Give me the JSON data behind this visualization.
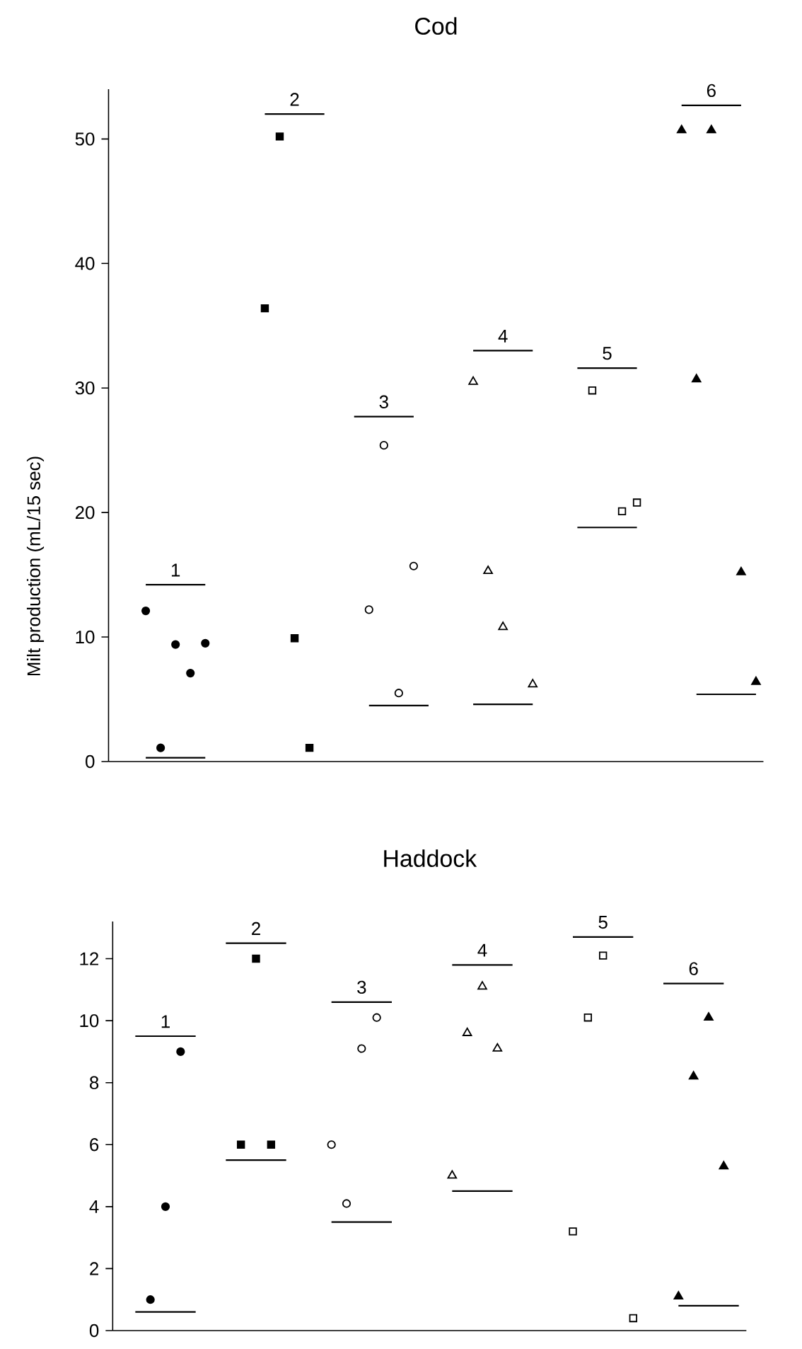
{
  "chart_data": [
    {
      "type": "scatter",
      "title": "Cod",
      "ylabel": "Milt production (mL/15 sec)",
      "ylim": [
        0,
        54
      ],
      "yticks": [
        0,
        10,
        20,
        30,
        40,
        50
      ],
      "tick_labels": "y",
      "categories": [
        null,
        null,
        null,
        null,
        null,
        null,
        null,
        null,
        null,
        null,
        null,
        null,
        null,
        null,
        null,
        null,
        null,
        null,
        null,
        null,
        null,
        null,
        null,
        null,
        null,
        null,
        null,
        null,
        null,
        null,
        null,
        null,
        null,
        null,
        null,
        null,
        null,
        null,
        null,
        null,
        null,
        null,
        null,
        null
      ],
      "series": [
        {
          "marker": "circle",
          "color": "#000000",
          "values": [
            null,
            null,
            12.1,
            1.1,
            9.4,
            7.1,
            9.5,
            null,
            null,
            null,
            null,
            null,
            null,
            null,
            null,
            null,
            null,
            null,
            null,
            null,
            null,
            null,
            null,
            null,
            null,
            null,
            null,
            null,
            null,
            null,
            null,
            null,
            null,
            null,
            null,
            null,
            null,
            null,
            null,
            null,
            null,
            null,
            null,
            null
          ]
        },
        {
          "type": "line",
          "name": "1",
          "color": "#000000",
          "values": [
            null,
            null,
            14.2,
            14.2,
            14.2,
            14.2,
            14.2,
            null,
            null,
            null,
            null,
            null,
            null,
            null,
            null,
            null,
            null,
            null,
            null,
            null,
            null,
            null,
            null,
            null,
            null,
            null,
            null,
            null,
            null,
            null,
            null,
            null,
            null,
            null,
            null,
            null,
            null,
            null,
            null,
            null,
            null,
            null,
            null,
            null
          ]
        },
        {
          "type": "line",
          "color": "#000000",
          "values": [
            null,
            null,
            0.3,
            0.3,
            0.3,
            0.3,
            0.3,
            null,
            null,
            null,
            null,
            null,
            null,
            null,
            null,
            null,
            null,
            null,
            null,
            null,
            null,
            null,
            null,
            null,
            null,
            null,
            null,
            null,
            null,
            null,
            null,
            null,
            null,
            null,
            null,
            null,
            null,
            null,
            null,
            null,
            null,
            null,
            null,
            null
          ]
        },
        {
          "marker": "square",
          "color": "#000000",
          "values": [
            null,
            null,
            null,
            null,
            null,
            null,
            null,
            null,
            null,
            null,
            36.4,
            50.2,
            9.9,
            1.1,
            null,
            null,
            null,
            null,
            null,
            null,
            null,
            null,
            null,
            null,
            null,
            null,
            null,
            null,
            null,
            null,
            null,
            null,
            null,
            null,
            null,
            null,
            null,
            null,
            null,
            null,
            null,
            null,
            null,
            null
          ]
        },
        {
          "type": "line",
          "name": "2",
          "color": "#000000",
          "values": [
            null,
            null,
            null,
            null,
            null,
            null,
            null,
            null,
            null,
            null,
            52.0,
            52.0,
            52.0,
            52.0,
            52.0,
            null,
            null,
            null,
            null,
            null,
            null,
            null,
            null,
            null,
            null,
            null,
            null,
            null,
            null,
            null,
            null,
            null,
            null,
            null,
            null,
            null,
            null,
            null,
            null,
            null,
            null,
            null,
            null,
            null
          ]
        },
        {
          "marker": "circle",
          "color": "#ffffff",
          "values": [
            null,
            null,
            null,
            null,
            null,
            null,
            null,
            null,
            null,
            null,
            null,
            null,
            null,
            null,
            null,
            null,
            null,
            12.2,
            25.4,
            5.5,
            15.7,
            null,
            null,
            null,
            null,
            null,
            null,
            null,
            null,
            null,
            null,
            null,
            null,
            null,
            null,
            null,
            null,
            null,
            null,
            null,
            null,
            null,
            null,
            null
          ]
        },
        {
          "type": "line",
          "name": "3",
          "color": "#000000",
          "values": [
            null,
            null,
            null,
            null,
            null,
            null,
            null,
            null,
            null,
            null,
            null,
            null,
            null,
            null,
            null,
            null,
            27.7,
            27.7,
            27.7,
            27.7,
            27.7,
            null,
            null,
            null,
            null,
            null,
            null,
            null,
            null,
            null,
            null,
            null,
            null,
            null,
            null,
            null,
            null,
            null,
            null,
            null,
            null,
            null,
            null,
            null
          ]
        },
        {
          "type": "line",
          "color": "#000000",
          "values": [
            null,
            null,
            null,
            null,
            null,
            null,
            null,
            null,
            null,
            null,
            null,
            null,
            null,
            null,
            null,
            null,
            null,
            4.5,
            4.5,
            4.5,
            4.5,
            4.5,
            null,
            null,
            null,
            null,
            null,
            null,
            null,
            null,
            null,
            null,
            null,
            null,
            null,
            null,
            null,
            null,
            null,
            null,
            null,
            null,
            null,
            null
          ]
        },
        {
          "marker": "triangle",
          "color": "#ffffff",
          "values": [
            null,
            null,
            null,
            null,
            null,
            null,
            null,
            null,
            null,
            null,
            null,
            null,
            null,
            null,
            null,
            null,
            null,
            null,
            null,
            null,
            null,
            null,
            null,
            null,
            30.5,
            15.3,
            10.8,
            null,
            6.2,
            null,
            null,
            null,
            null,
            null,
            null,
            null,
            null,
            null,
            null,
            null,
            null,
            null,
            null,
            null
          ]
        },
        {
          "type": "line",
          "name": "4",
          "color": "#000000",
          "values": [
            null,
            null,
            null,
            null,
            null,
            null,
            null,
            null,
            null,
            null,
            null,
            null,
            null,
            null,
            null,
            null,
            null,
            null,
            null,
            null,
            null,
            null,
            null,
            null,
            33.0,
            33.0,
            33.0,
            33.0,
            33.0,
            null,
            null,
            null,
            null,
            null,
            null,
            null,
            null,
            null,
            null,
            null,
            null,
            null,
            null,
            null
          ]
        },
        {
          "type": "line",
          "color": "#000000",
          "values": [
            null,
            null,
            null,
            null,
            null,
            null,
            null,
            null,
            null,
            null,
            null,
            null,
            null,
            null,
            null,
            null,
            null,
            null,
            null,
            null,
            null,
            null,
            null,
            null,
            4.6,
            4.6,
            4.6,
            4.6,
            4.6,
            null,
            null,
            null,
            null,
            null,
            null,
            null,
            null,
            null,
            null,
            null,
            null,
            null,
            null,
            null
          ]
        },
        {
          "marker": "square",
          "color": "#ffffff",
          "values": [
            null,
            null,
            null,
            null,
            null,
            null,
            null,
            null,
            null,
            null,
            null,
            null,
            null,
            null,
            null,
            null,
            null,
            null,
            null,
            null,
            null,
            null,
            null,
            null,
            null,
            null,
            null,
            null,
            null,
            null,
            null,
            null,
            29.8,
            null,
            20.1,
            20.8,
            null,
            null,
            null,
            null,
            null,
            null,
            null,
            null
          ]
        },
        {
          "type": "line",
          "name": "5",
          "color": "#000000",
          "values": [
            null,
            null,
            null,
            null,
            null,
            null,
            null,
            null,
            null,
            null,
            null,
            null,
            null,
            null,
            null,
            null,
            null,
            null,
            null,
            null,
            null,
            null,
            null,
            null,
            null,
            null,
            null,
            null,
            null,
            null,
            null,
            31.6,
            31.6,
            31.6,
            31.6,
            31.6,
            null,
            null,
            null,
            null,
            null,
            null,
            null,
            null
          ]
        },
        {
          "type": "line",
          "color": "#000000",
          "values": [
            null,
            null,
            null,
            null,
            null,
            null,
            null,
            null,
            null,
            null,
            null,
            null,
            null,
            null,
            null,
            null,
            null,
            null,
            null,
            null,
            null,
            null,
            null,
            null,
            null,
            null,
            null,
            null,
            null,
            null,
            null,
            18.8,
            18.8,
            18.8,
            18.8,
            18.8,
            null,
            null,
            null,
            null,
            null,
            null,
            null,
            null
          ]
        },
        {
          "marker": "triangle",
          "color": "#000000",
          "values": [
            null,
            null,
            null,
            null,
            null,
            null,
            null,
            null,
            null,
            null,
            null,
            null,
            null,
            null,
            null,
            null,
            null,
            null,
            null,
            null,
            null,
            null,
            null,
            null,
            null,
            null,
            null,
            null,
            null,
            null,
            null,
            null,
            null,
            null,
            null,
            null,
            null,
            null,
            50.7,
            30.7,
            50.7,
            null,
            15.2,
            6.4
          ]
        },
        {
          "type": "line",
          "name": "6",
          "color": "#000000",
          "values": [
            null,
            null,
            null,
            null,
            null,
            null,
            null,
            null,
            null,
            null,
            null,
            null,
            null,
            null,
            null,
            null,
            null,
            null,
            null,
            null,
            null,
            null,
            null,
            null,
            null,
            null,
            null,
            null,
            null,
            null,
            null,
            null,
            null,
            null,
            null,
            null,
            null,
            null,
            52.7,
            52.7,
            52.7,
            52.7,
            52.7,
            null
          ]
        },
        {
          "type": "line",
          "color": "#000000",
          "values": [
            null,
            null,
            null,
            null,
            null,
            null,
            null,
            null,
            null,
            null,
            null,
            null,
            null,
            null,
            null,
            null,
            null,
            null,
            null,
            null,
            null,
            null,
            null,
            null,
            null,
            null,
            null,
            null,
            null,
            null,
            null,
            null,
            null,
            null,
            null,
            null,
            null,
            null,
            null,
            5.4,
            5.4,
            5.4,
            5.4,
            5.4
          ]
        }
      ]
    },
    {
      "type": "scatter",
      "title": "Haddock",
      "ylim": [
        0,
        13.2
      ],
      "yticks": [
        0,
        2,
        4,
        6,
        8,
        10,
        12
      ],
      "tick_labels": "y",
      "categories": [
        null,
        null,
        null,
        null,
        null,
        null,
        null,
        null,
        null,
        null,
        null,
        null,
        null,
        null,
        null,
        null,
        null,
        null,
        null,
        null,
        null,
        null,
        null,
        null,
        null,
        null,
        null,
        null,
        null,
        null,
        null,
        null,
        null,
        null,
        null,
        null,
        null,
        null,
        null,
        null,
        null,
        null
      ],
      "series": [
        {
          "marker": "circle",
          "color": "#000000",
          "values": [
            null,
            null,
            1.0,
            4.0,
            9.0,
            null,
            null,
            null,
            null,
            null,
            null,
            null,
            null,
            null,
            null,
            null,
            null,
            null,
            null,
            null,
            null,
            null,
            null,
            null,
            null,
            null,
            null,
            null,
            null,
            null,
            null,
            null,
            null,
            null,
            null,
            null,
            null,
            null,
            null,
            null,
            null,
            null
          ]
        },
        {
          "type": "line",
          "name": "1",
          "color": "#000000",
          "values": [
            null,
            9.5,
            9.5,
            9.5,
            9.5,
            9.5,
            null,
            null,
            null,
            null,
            null,
            null,
            null,
            null,
            null,
            null,
            null,
            null,
            null,
            null,
            null,
            null,
            null,
            null,
            null,
            null,
            null,
            null,
            null,
            null,
            null,
            null,
            null,
            null,
            null,
            null,
            null,
            null,
            null,
            null,
            null,
            null
          ]
        },
        {
          "type": "line",
          "color": "#000000",
          "values": [
            null,
            0.6,
            0.6,
            0.6,
            0.6,
            0.6,
            null,
            null,
            null,
            null,
            null,
            null,
            null,
            null,
            null,
            null,
            null,
            null,
            null,
            null,
            null,
            null,
            null,
            null,
            null,
            null,
            null,
            null,
            null,
            null,
            null,
            null,
            null,
            null,
            null,
            null,
            null,
            null,
            null,
            null,
            null,
            null
          ]
        },
        {
          "marker": "square",
          "color": "#000000",
          "values": [
            null,
            null,
            null,
            null,
            null,
            null,
            null,
            null,
            6.0,
            12.0,
            6.0,
            null,
            null,
            null,
            null,
            null,
            null,
            null,
            null,
            null,
            null,
            null,
            null,
            null,
            null,
            null,
            null,
            null,
            null,
            null,
            null,
            null,
            null,
            null,
            null,
            null,
            null,
            null,
            null,
            null,
            null,
            null
          ]
        },
        {
          "type": "line",
          "name": "2",
          "color": "#000000",
          "values": [
            null,
            null,
            null,
            null,
            null,
            null,
            null,
            12.5,
            12.5,
            12.5,
            12.5,
            12.5,
            null,
            null,
            null,
            null,
            null,
            null,
            null,
            null,
            null,
            null,
            null,
            null,
            null,
            null,
            null,
            null,
            null,
            null,
            null,
            null,
            null,
            null,
            null,
            null,
            null,
            null,
            null,
            null,
            null,
            null
          ]
        },
        {
          "type": "line",
          "color": "#000000",
          "values": [
            null,
            null,
            null,
            null,
            null,
            null,
            null,
            5.5,
            5.5,
            5.5,
            5.5,
            5.5,
            null,
            null,
            null,
            null,
            null,
            null,
            null,
            null,
            null,
            null,
            null,
            null,
            null,
            null,
            null,
            null,
            null,
            null,
            null,
            null,
            null,
            null,
            null,
            null,
            null,
            null,
            null,
            null,
            null,
            null
          ]
        },
        {
          "marker": "circle",
          "color": "#ffffff",
          "values": [
            null,
            null,
            null,
            null,
            null,
            null,
            null,
            null,
            null,
            null,
            null,
            null,
            null,
            null,
            6.0,
            4.1,
            9.1,
            10.1,
            null,
            null,
            null,
            null,
            null,
            null,
            null,
            null,
            null,
            null,
            null,
            null,
            null,
            null,
            null,
            null,
            null,
            null,
            null,
            null,
            null,
            null,
            null,
            null
          ]
        },
        {
          "type": "line",
          "name": "3",
          "color": "#000000",
          "values": [
            null,
            null,
            null,
            null,
            null,
            null,
            null,
            null,
            null,
            null,
            null,
            null,
            null,
            null,
            10.6,
            10.6,
            10.6,
            10.6,
            10.6,
            null,
            null,
            null,
            null,
            null,
            null,
            null,
            null,
            null,
            null,
            null,
            null,
            null,
            null,
            null,
            null,
            null,
            null,
            null,
            null,
            null,
            null,
            null
          ]
        },
        {
          "type": "line",
          "color": "#000000",
          "values": [
            null,
            null,
            null,
            null,
            null,
            null,
            null,
            null,
            null,
            null,
            null,
            null,
            null,
            null,
            3.5,
            3.5,
            3.5,
            3.5,
            3.5,
            null,
            null,
            null,
            null,
            null,
            null,
            null,
            null,
            null,
            null,
            null,
            null,
            null,
            null,
            null,
            null,
            null,
            null,
            null,
            null,
            null,
            null,
            null
          ]
        },
        {
          "marker": "triangle",
          "color": "#ffffff",
          "values": [
            null,
            null,
            null,
            null,
            null,
            null,
            null,
            null,
            null,
            null,
            null,
            null,
            null,
            null,
            null,
            null,
            null,
            null,
            null,
            null,
            null,
            null,
            5.0,
            9.6,
            11.1,
            9.1,
            null,
            null,
            null,
            null,
            null,
            null,
            null,
            null,
            null,
            null,
            null,
            null,
            null,
            null,
            null,
            null
          ]
        },
        {
          "type": "line",
          "name": "4",
          "color": "#000000",
          "values": [
            null,
            null,
            null,
            null,
            null,
            null,
            null,
            null,
            null,
            null,
            null,
            null,
            null,
            null,
            null,
            null,
            null,
            null,
            null,
            null,
            null,
            null,
            11.8,
            11.8,
            11.8,
            11.8,
            11.8,
            null,
            null,
            null,
            null,
            null,
            null,
            null,
            null,
            null,
            null,
            null,
            null,
            null,
            null,
            null
          ]
        },
        {
          "type": "line",
          "color": "#000000",
          "values": [
            null,
            null,
            null,
            null,
            null,
            null,
            null,
            null,
            null,
            null,
            null,
            null,
            null,
            null,
            null,
            null,
            null,
            null,
            null,
            null,
            null,
            null,
            4.5,
            4.5,
            4.5,
            4.5,
            4.5,
            null,
            null,
            null,
            null,
            null,
            null,
            null,
            null,
            null,
            null,
            null,
            null,
            null,
            null,
            null
          ]
        },
        {
          "marker": "square",
          "color": "#ffffff",
          "values": [
            null,
            null,
            null,
            null,
            null,
            null,
            null,
            null,
            null,
            null,
            null,
            null,
            null,
            null,
            null,
            null,
            null,
            null,
            null,
            null,
            null,
            null,
            null,
            null,
            null,
            null,
            null,
            null,
            null,
            null,
            3.2,
            10.1,
            12.1,
            null,
            0.4,
            null,
            null,
            null,
            null,
            null,
            null,
            null
          ]
        },
        {
          "type": "line",
          "name": "5",
          "color": "#000000",
          "values": [
            null,
            null,
            null,
            null,
            null,
            null,
            null,
            null,
            null,
            null,
            null,
            null,
            null,
            null,
            null,
            null,
            null,
            null,
            null,
            null,
            null,
            null,
            null,
            null,
            null,
            null,
            null,
            null,
            null,
            null,
            12.7,
            12.7,
            12.7,
            12.7,
            12.7,
            null,
            null,
            null,
            null,
            null,
            null,
            null
          ]
        },
        {
          "marker": "triangle",
          "color": "#000000",
          "values": [
            null,
            null,
            null,
            null,
            null,
            null,
            null,
            null,
            null,
            null,
            null,
            null,
            null,
            null,
            null,
            null,
            null,
            null,
            null,
            null,
            null,
            null,
            null,
            null,
            null,
            null,
            null,
            null,
            null,
            null,
            null,
            null,
            null,
            null,
            null,
            null,
            null,
            1.1,
            8.2,
            10.1,
            5.3,
            null
          ]
        },
        {
          "type": "line",
          "name": "6",
          "color": "#000000",
          "values": [
            null,
            null,
            null,
            null,
            null,
            null,
            null,
            null,
            null,
            null,
            null,
            null,
            null,
            null,
            null,
            null,
            null,
            null,
            null,
            null,
            null,
            null,
            null,
            null,
            null,
            null,
            null,
            null,
            null,
            null,
            null,
            null,
            null,
            null,
            null,
            null,
            11.2,
            11.2,
            11.2,
            11.2,
            11.2,
            null
          ]
        },
        {
          "type": "line",
          "color": "#000000",
          "values": [
            null,
            null,
            null,
            null,
            null,
            null,
            null,
            null,
            null,
            null,
            null,
            null,
            null,
            null,
            null,
            null,
            null,
            null,
            null,
            null,
            null,
            null,
            null,
            null,
            null,
            null,
            null,
            null,
            null,
            null,
            null,
            null,
            null,
            null,
            null,
            null,
            null,
            0.8,
            0.8,
            0.8,
            0.8,
            0.8
          ]
        }
      ]
    }
  ]
}
